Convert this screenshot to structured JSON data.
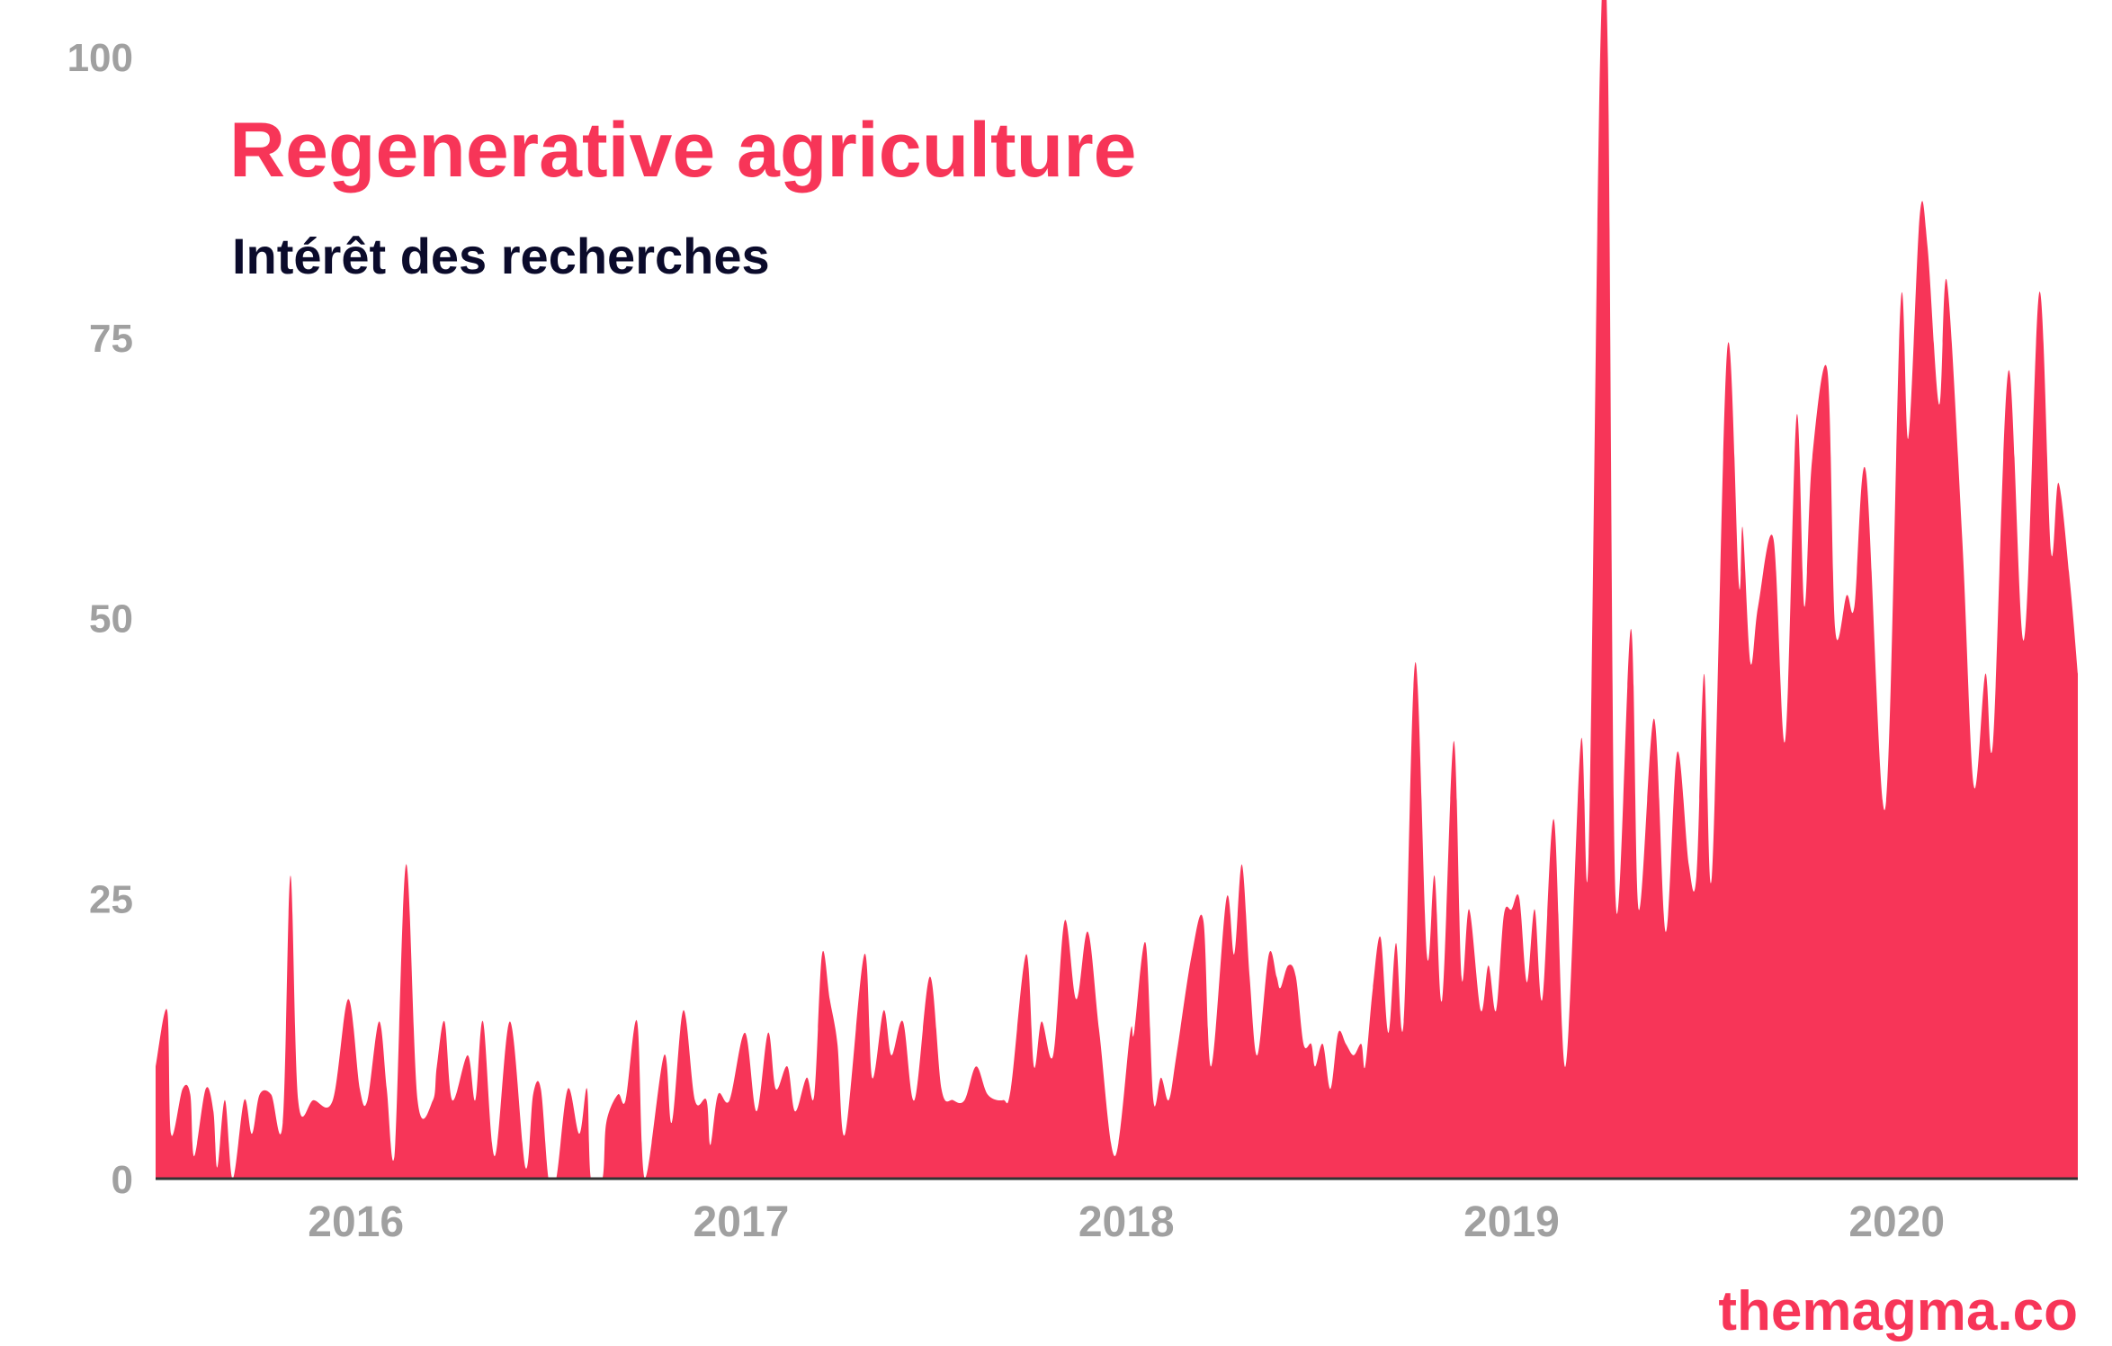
{
  "chart_data": {
    "type": "area",
    "title": "Regenerative agriculture",
    "subtitle": "Intérêt des recherches",
    "xlabel": "",
    "ylabel": "",
    "xlim": [
      2015.48,
      2020.47
    ],
    "ylim": [
      0,
      100
    ],
    "y_ticks": [
      0,
      25,
      50,
      75,
      100
    ],
    "x_ticks": [
      {
        "value": 2016,
        "label": "2016"
      },
      {
        "value": 2017,
        "label": "2017"
      },
      {
        "value": 2018,
        "label": "2018"
      },
      {
        "value": 2019,
        "label": "2019"
      },
      {
        "value": 2020,
        "label": "2020"
      }
    ],
    "grid": false,
    "color": "#f73558",
    "series": [
      {
        "name": "Regenerative agriculture",
        "x": [
          2015.48,
          2015.51,
          2015.52,
          2015.55,
          2015.57,
          2015.58,
          2015.61,
          2015.63,
          2015.64,
          2015.66,
          2015.68,
          2015.71,
          2015.73,
          2015.75,
          2015.78,
          2015.81,
          2015.83,
          2015.85,
          2015.89,
          2015.94,
          2015.98,
          2016.01,
          2016.03,
          2016.06,
          2016.08,
          2016.1,
          2016.13,
          2016.16,
          2016.2,
          2016.21,
          2016.23,
          2016.25,
          2016.29,
          2016.31,
          2016.33,
          2016.36,
          2016.4,
          2016.44,
          2016.46,
          2016.48,
          2016.5,
          2016.52,
          2016.55,
          2016.58,
          2016.6,
          2016.61,
          2016.64,
          2016.65,
          2016.68,
          2016.7,
          2016.73,
          2016.75,
          2016.8,
          2016.82,
          2016.85,
          2016.88,
          2016.91,
          2016.92,
          2016.94,
          2016.97,
          2017.01,
          2017.04,
          2017.07,
          2017.09,
          2017.12,
          2017.14,
          2017.17,
          2017.19,
          2017.21,
          2017.23,
          2017.25,
          2017.27,
          2017.32,
          2017.34,
          2017.37,
          2017.39,
          2017.42,
          2017.45,
          2017.49,
          2017.52,
          2017.55,
          2017.58,
          2017.61,
          2017.64,
          2017.68,
          2017.7,
          2017.74,
          2017.76,
          2017.78,
          2017.81,
          2017.84,
          2017.87,
          2017.9,
          2017.93,
          2017.97,
          2018.01,
          2018.02,
          2018.05,
          2018.07,
          2018.09,
          2018.11,
          2018.13,
          2018.17,
          2018.2,
          2018.22,
          2018.26,
          2018.28,
          2018.3,
          2018.32,
          2018.34,
          2018.37,
          2018.39,
          2018.4,
          2018.42,
          2018.44,
          2018.46,
          2018.48,
          2018.49,
          2018.51,
          2018.53,
          2018.55,
          2018.57,
          2018.59,
          2018.61,
          2018.62,
          2018.64,
          2018.66,
          2018.68,
          2018.7,
          2018.72,
          2018.75,
          2018.78,
          2018.8,
          2018.82,
          2018.85,
          2018.87,
          2018.89,
          2018.92,
          2018.94,
          2018.96,
          2018.98,
          2019.0,
          2019.02,
          2019.04,
          2019.06,
          2019.08,
          2019.11,
          2019.14,
          2019.18,
          2019.2,
          2019.23,
          2019.25,
          2019.27,
          2019.31,
          2019.33,
          2019.37,
          2019.4,
          2019.43,
          2019.46,
          2019.48,
          2019.5,
          2019.52,
          2019.56,
          2019.59,
          2019.6,
          2019.62,
          2019.64,
          2019.68,
          2019.71,
          2019.74,
          2019.76,
          2019.78,
          2019.82,
          2019.84,
          2019.87,
          2019.89,
          2019.92,
          2019.97,
          2020.01,
          2020.03,
          2020.06,
          2020.08,
          2020.11,
          2020.13,
          2020.17,
          2020.2,
          2020.23,
          2020.25,
          2020.29,
          2020.33,
          2020.37,
          2020.4,
          2020.42,
          2020.45,
          2020.47
        ],
        "values": [
          10,
          15,
          4,
          8,
          7.5,
          2,
          8,
          6,
          1,
          7,
          0,
          7,
          4,
          7.5,
          7.5,
          5,
          27,
          7,
          7,
          7,
          16,
          8,
          7,
          14,
          8,
          2,
          28,
          7,
          7,
          10,
          14,
          7,
          11,
          7,
          14,
          2,
          14,
          1,
          7.5,
          8,
          0,
          0,
          8,
          4,
          8,
          0,
          0,
          5,
          7.5,
          7,
          14,
          0,
          11,
          5,
          15,
          7,
          7,
          3,
          7.5,
          7,
          13,
          6,
          13,
          8,
          10,
          6,
          9,
          7.5,
          20,
          16,
          12,
          4,
          20,
          9,
          15,
          11,
          14,
          7,
          18,
          8,
          7,
          7,
          10,
          7.5,
          7,
          8,
          20,
          10,
          14,
          11,
          23,
          16,
          22,
          13,
          2,
          13,
          13,
          21,
          7,
          9,
          7,
          11,
          20,
          23,
          10,
          25,
          20,
          28,
          18,
          11,
          20,
          18,
          17,
          19,
          18,
          12,
          12,
          10,
          12,
          8,
          13,
          12,
          11,
          12,
          10,
          17,
          21.5,
          13,
          21,
          14,
          46,
          20,
          27,
          16,
          39,
          18,
          24,
          15,
          19,
          15,
          23.5,
          24,
          25,
          17.5,
          24,
          16,
          32,
          10,
          39,
          29,
          100,
          100,
          25,
          49,
          24,
          41,
          22,
          38,
          28,
          27,
          45,
          27,
          74,
          53,
          58,
          46,
          51,
          57,
          39,
          68,
          51,
          64,
          72,
          49,
          52,
          51,
          63,
          33,
          78,
          66,
          86,
          83,
          69,
          80,
          57,
          35,
          45,
          39,
          72,
          48,
          79,
          56,
          62,
          53,
          45
        ]
      }
    ],
    "watermark": "themagma.co"
  }
}
